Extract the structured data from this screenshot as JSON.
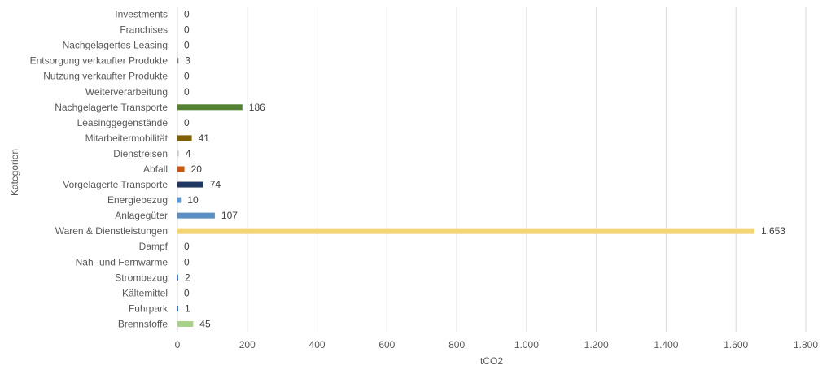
{
  "chart_data": {
    "type": "bar",
    "orientation": "horizontal",
    "categories": [
      "Investments",
      "Franchises",
      "Nachgelagertes Leasing",
      "Entsorgung verkaufter Produkte",
      "Nutzung verkaufter Produkte",
      "Weiterverarbeitung",
      "Nachgelagerte Transporte",
      "Leasinggegenstände",
      "Mitarbeitermobilität",
      "Dienstreisen",
      "Abfall",
      "Vorgelagerte Transporte",
      "Energiebezug",
      "Anlagegüter",
      "Waren & Dienstleistungen",
      "Dampf",
      "Nah- und Fernwärme",
      "Strombezug",
      "Kältemittel",
      "Fuhrpark",
      "Brennstoffe"
    ],
    "values": [
      0,
      0,
      0,
      3,
      0,
      0,
      186,
      0,
      41,
      4,
      20,
      74,
      10,
      107,
      1653,
      0,
      0,
      2,
      0,
      1,
      45
    ],
    "value_labels": [
      "0",
      "0",
      "0",
      "3",
      "0",
      "0",
      "186",
      "0",
      "41",
      "4",
      "20",
      "74",
      "10",
      "107",
      "1.653",
      "0",
      "0",
      "2",
      "0",
      "1",
      "45"
    ],
    "colors": [
      "#4472c4",
      "#4472c4",
      "#4472c4",
      "#7f7f7f",
      "#4472c4",
      "#4472c4",
      "#548235",
      "#4472c4",
      "#7f6000",
      "#c9c9c9",
      "#c55a11",
      "#203864",
      "#5b9bd5",
      "#5b8fc2",
      "#f2d675",
      "#4472c4",
      "#4472c4",
      "#4472c4",
      "#4472c4",
      "#4472c4",
      "#a9d18e"
    ],
    "xlabel": "tCO2",
    "ylabel": "Kategorien",
    "xlim": [
      0,
      1800
    ],
    "xticks": [
      0,
      200,
      400,
      600,
      800,
      1000,
      1200,
      1400,
      1600,
      1800
    ],
    "xtick_labels": [
      "0",
      "200",
      "400",
      "600",
      "800",
      "1.000",
      "1.200",
      "1.400",
      "1.600",
      "1.800"
    ],
    "grid": "vertical",
    "legend": "none"
  }
}
